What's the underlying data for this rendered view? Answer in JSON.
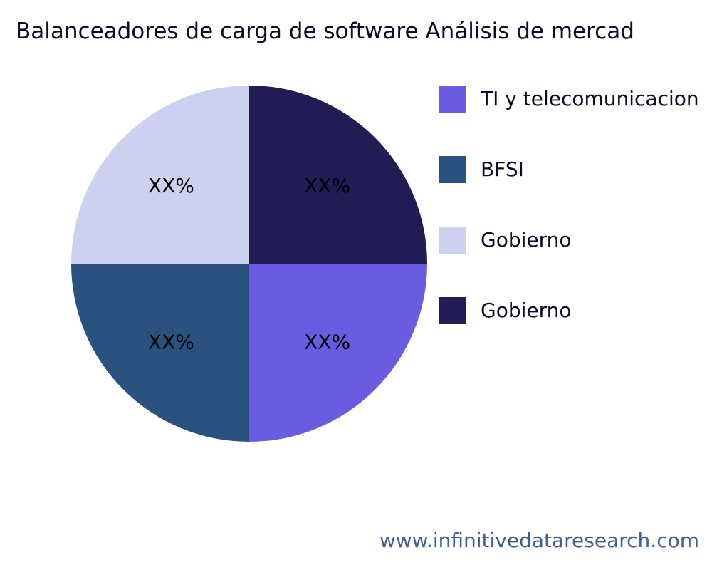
{
  "page": {
    "title": "Balanceadores de carga de software Análisis de mercad",
    "footer": "www.infinitivedataresearch.com"
  },
  "chart_data": {
    "type": "pie",
    "title": "Balanceadores de carga de software Análisis de mercad",
    "start_angle_deg": 0,
    "direction": "clockwise",
    "legend_position": "right",
    "slice_label_distance": 0.62,
    "slices": [
      {
        "label": "Gobierno",
        "value": 25,
        "display": "XX%",
        "color": "#211C54"
      },
      {
        "label": "TI y telecomunicacion",
        "value": 25,
        "display": "XX%",
        "color": "#6A5CE0"
      },
      {
        "label": "BFSI",
        "value": 25,
        "display": "XX%",
        "color": "#2A527E"
      },
      {
        "label": "Gobierno",
        "value": 25,
        "display": "XX%",
        "color": "#CDD1F0"
      }
    ],
    "legend": [
      {
        "label": "TI y telecomunicacion",
        "color": "#6A5CE0"
      },
      {
        "label": "BFSI",
        "color": "#2A527E"
      },
      {
        "label": "Gobierno",
        "color": "#CDD1F0"
      },
      {
        "label": "Gobierno",
        "color": "#211C54"
      }
    ]
  }
}
